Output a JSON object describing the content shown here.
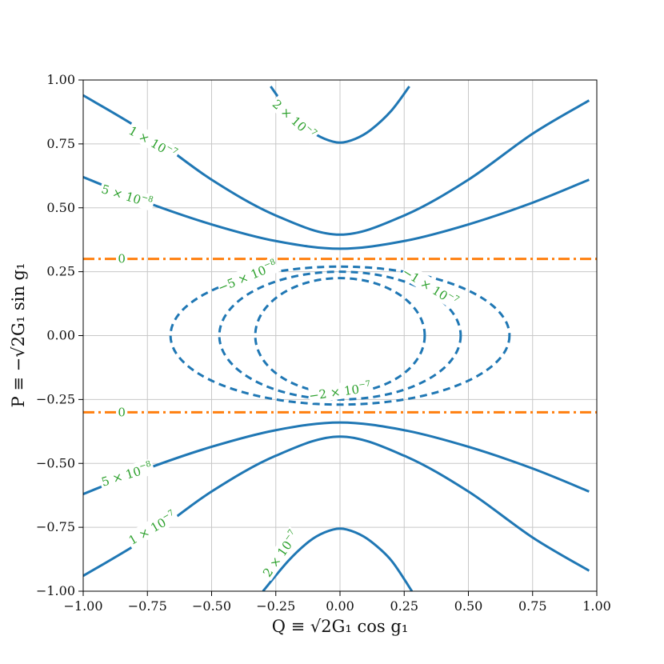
{
  "chart_data": {
    "type": "contour",
    "xlabel": "Q ≡ √2G₁ cos g₁",
    "ylabel": "P ≡ −√2G₁ sin g₁",
    "xlim": [
      -1.0,
      1.0
    ],
    "ylim": [
      -1.0,
      1.0
    ],
    "grid": true,
    "xticks": [
      -1.0,
      -0.75,
      -0.5,
      -0.25,
      0.0,
      0.25,
      0.5,
      0.75,
      1.0
    ],
    "yticks": [
      -1.0,
      -0.75,
      -0.5,
      -0.25,
      0.0,
      0.25,
      0.5,
      0.75,
      1.0
    ],
    "xtick_labels": [
      "−1.00",
      "−0.75",
      "−0.50",
      "−0.25",
      "0.00",
      "0.25",
      "0.50",
      "0.75",
      "1.00"
    ],
    "ytick_labels": [
      "−1.00",
      "−0.75",
      "−0.50",
      "−0.25",
      "0.00",
      "0.25",
      "0.50",
      "0.75",
      "1.00"
    ],
    "series": [
      {
        "name": "level 2e-7 upper",
        "level": 2e-07,
        "style": "solid",
        "color": "#1f77b4",
        "x": [
          -0.27,
          -0.2,
          -0.12,
          -0.06,
          0.0,
          0.06,
          0.12,
          0.2,
          0.27
        ],
        "y": [
          0.975,
          0.88,
          0.805,
          0.77,
          0.755,
          0.77,
          0.805,
          0.88,
          0.975
        ]
      },
      {
        "name": "level 1e-7 upper",
        "level": 1e-07,
        "style": "solid",
        "color": "#1f77b4",
        "x": [
          -1.0,
          -0.75,
          -0.5,
          -0.25,
          0.0,
          0.25,
          0.5,
          0.75,
          0.97
        ],
        "y": [
          0.94,
          0.79,
          0.61,
          0.47,
          0.395,
          0.47,
          0.61,
          0.79,
          0.92
        ]
      },
      {
        "name": "level 5e-8 upper",
        "level": 5e-08,
        "style": "solid",
        "color": "#1f77b4",
        "x": [
          -1.0,
          -0.75,
          -0.5,
          -0.25,
          0.0,
          0.25,
          0.5,
          0.75,
          0.97
        ],
        "y": [
          0.62,
          0.52,
          0.435,
          0.37,
          0.34,
          0.37,
          0.435,
          0.52,
          0.61
        ]
      },
      {
        "name": "level 5e-8 lower",
        "level": 5e-08,
        "style": "solid",
        "color": "#1f77b4",
        "x": [
          -1.0,
          -0.75,
          -0.5,
          -0.25,
          0.0,
          0.25,
          0.5,
          0.75,
          0.97
        ],
        "y": [
          -0.62,
          -0.52,
          -0.435,
          -0.37,
          -0.34,
          -0.37,
          -0.435,
          -0.52,
          -0.61
        ]
      },
      {
        "name": "level 1e-7 lower",
        "level": 1e-07,
        "style": "solid",
        "color": "#1f77b4",
        "x": [
          -1.0,
          -0.75,
          -0.5,
          -0.25,
          0.0,
          0.25,
          0.5,
          0.75,
          0.97
        ],
        "y": [
          -0.94,
          -0.79,
          -0.61,
          -0.47,
          -0.395,
          -0.47,
          -0.61,
          -0.79,
          -0.92
        ]
      },
      {
        "name": "level 2e-7 lower",
        "level": 2e-07,
        "style": "solid",
        "color": "#1f77b4",
        "x": [
          -0.3,
          -0.2,
          -0.12,
          -0.06,
          0.0,
          0.06,
          0.12,
          0.2,
          0.28
        ],
        "y": [
          -1.0,
          -0.88,
          -0.805,
          -0.77,
          -0.755,
          -0.77,
          -0.805,
          -0.88,
          -1.0
        ]
      },
      {
        "name": "level -5e-8",
        "level": -5e-08,
        "style": "dashed",
        "color": "#1f77b4",
        "ellipse": {
          "cx": 0.0,
          "cy": 0.0,
          "rx": 0.66,
          "ry": 0.27
        }
      },
      {
        "name": "level -1e-7",
        "level": -1e-07,
        "style": "dashed",
        "color": "#1f77b4",
        "ellipse": {
          "cx": 0.0,
          "cy": 0.0,
          "rx": 0.47,
          "ry": 0.25
        }
      },
      {
        "name": "level -2e-7",
        "level": -2e-07,
        "style": "dashed",
        "color": "#1f77b4",
        "ellipse": {
          "cx": 0.0,
          "cy": 0.0,
          "rx": 0.33,
          "ry": 0.225
        }
      },
      {
        "name": "level 0 upper",
        "level": 0,
        "style": "dashdot",
        "color": "#ff7f0e",
        "x": [
          -1.0,
          1.0
        ],
        "y": [
          0.3,
          0.3
        ]
      },
      {
        "name": "level 0 lower",
        "level": 0,
        "style": "dashdot",
        "color": "#ff7f0e",
        "x": [
          -1.0,
          1.0
        ],
        "y": [
          -0.3,
          -0.3
        ]
      }
    ],
    "contour_labels": [
      {
        "base": "2 × 10",
        "exp": "−7",
        "x": -0.18,
        "y": 0.845,
        "angle": 42
      },
      {
        "base": "1 × 10",
        "exp": "−7",
        "x": -0.73,
        "y": 0.755,
        "angle": 30
      },
      {
        "base": "5 × 10",
        "exp": "−8",
        "x": -0.83,
        "y": 0.545,
        "angle": 17
      },
      {
        "base": "0",
        "exp": "",
        "x": -0.85,
        "y": 0.3,
        "angle": 0
      },
      {
        "base": "−5 × 10",
        "exp": "−8",
        "x": -0.36,
        "y": 0.23,
        "angle": -22
      },
      {
        "base": "−1 × 10",
        "exp": "−7",
        "x": 0.35,
        "y": 0.19,
        "angle": 32
      },
      {
        "base": "−2 × 10",
        "exp": "−7",
        "x": 0.0,
        "y": -0.22,
        "angle": -8
      },
      {
        "base": "0",
        "exp": "",
        "x": -0.85,
        "y": -0.3,
        "angle": 0
      },
      {
        "base": "5 × 10",
        "exp": "−8",
        "x": -0.83,
        "y": -0.545,
        "angle": -17
      },
      {
        "base": "1 × 10",
        "exp": "−7",
        "x": -0.73,
        "y": -0.755,
        "angle": -30
      },
      {
        "base": "2 × 10",
        "exp": "−7",
        "x": -0.23,
        "y": -0.855,
        "angle": -55
      }
    ]
  }
}
